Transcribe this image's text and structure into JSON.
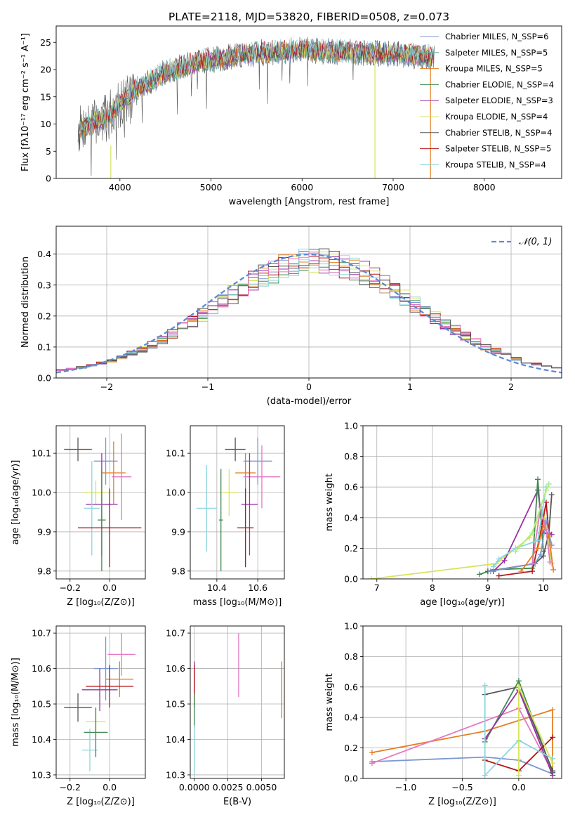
{
  "chart_data": [
    {
      "id": "spectrum",
      "type": "line",
      "title": "PLATE=2118, MJD=53820, FIBERID=0508, z=0.073",
      "xlabel": "wavelength [Angstrom, rest frame]",
      "ylabel": "Flux [fλ10⁻¹⁷ erg cm⁻² s⁻¹ A⁻¹]",
      "xlim": [
        3300,
        8850
      ],
      "ylim": [
        0,
        28
      ],
      "xticks": [
        "4000",
        "5000",
        "6000",
        "7000",
        "8000"
      ],
      "yticks": [
        "0",
        "5",
        "10",
        "15",
        "20",
        "25"
      ],
      "legend_position": "upper-right",
      "continuum": {
        "x": [
          3550,
          3650,
          3750,
          3850,
          3950,
          4050,
          4150,
          4300,
          4500,
          4700,
          4900,
          5100,
          5300,
          5500,
          5700,
          5900,
          6100,
          6300,
          6500,
          6700,
          6900,
          7100,
          7300,
          7500,
          7700,
          7900,
          8100,
          8300,
          8500,
          8700
        ],
        "y": [
          9.0,
          10.0,
          10.5,
          11.0,
          13.0,
          14.5,
          16.0,
          17.5,
          19.5,
          20.5,
          21.5,
          22.0,
          22.5,
          23.0,
          23.3,
          23.5,
          23.5,
          23.3,
          23.2,
          23.0,
          23.0,
          22.8,
          22.5,
          22.0,
          21.5,
          21.0,
          20.5,
          20.0,
          19.5,
          19.0
        ]
      },
      "series": [
        {
          "name": "Chabrier MILES, N_SSP=6",
          "color": "#7d97d2"
        },
        {
          "name": "Salpeter MILES, N_SSP=5",
          "color": "#5ab4a4"
        },
        {
          "name": "Kroupa MILES, N_SSP=5",
          "color": "#e67e22"
        },
        {
          "name": "Chabrier ELODIE, N_SSP=4",
          "color": "#3f8a4f"
        },
        {
          "name": "Salpeter ELODIE, N_SSP=3",
          "color": "#9a32a3"
        },
        {
          "name": "Kroupa ELODIE, N_SSP=4",
          "color": "#d7e35c"
        },
        {
          "name": "Chabrier STELIB, N_SSP=4",
          "color": "#555555"
        },
        {
          "name": "Salpeter STELIB, N_SSP=5",
          "color": "#b51717"
        },
        {
          "name": "Kroupa STELIB, N_SSP=4",
          "color": "#8ad6de"
        }
      ]
    },
    {
      "id": "residuals",
      "type": "line",
      "xlabel": "(data-model)/error",
      "ylabel": "Normed distribution",
      "xlim": [
        -2.5,
        2.5
      ],
      "ylim": [
        0,
        0.49
      ],
      "xticks": [
        "−2",
        "−1",
        "0",
        "1",
        "2"
      ],
      "yticks": [
        "0.0",
        "0.1",
        "0.2",
        "0.3",
        "0.4"
      ],
      "grid": true,
      "gaussian_label": "𝒩(0, 1)",
      "bin_width": 0.1,
      "colors": [
        "#7d97d2",
        "#e67e22",
        "#3f8a4f",
        "#9a32a3",
        "#d7e35c",
        "#b51717",
        "#8ad6de",
        "#e377c2",
        "#555555"
      ]
    },
    {
      "id": "age_vs_Z",
      "type": "scatter",
      "xlabel": "Z [log₁₀(Z/Z⊙)]",
      "ylabel": "age  [log₁₀(age/yr)]",
      "xlim": [
        -0.27,
        0.18
      ],
      "ylim": [
        9.78,
        10.17
      ],
      "xticks": [
        "−0.2",
        "0.0"
      ],
      "yticks": [
        "9.8",
        "9.9",
        "10.0",
        "10.1"
      ],
      "points": [
        {
          "x": -0.16,
          "y": 10.11,
          "xerr": 0.07,
          "yerr": 0.03,
          "color": "#555555"
        },
        {
          "x": -0.02,
          "y": 10.08,
          "xerr": 0.06,
          "yerr": 0.06,
          "color": "#7d97d2"
        },
        {
          "x": 0.02,
          "y": 10.05,
          "xerr": 0.06,
          "yerr": 0.08,
          "color": "#e67e22"
        },
        {
          "x": 0.06,
          "y": 10.04,
          "xerr": 0.05,
          "yerr": 0.11,
          "color": "#e377c2"
        },
        {
          "x": -0.07,
          "y": 10.0,
          "xerr": 0.06,
          "yerr": 0.03,
          "color": "#d7e35c"
        },
        {
          "x": -0.04,
          "y": 9.97,
          "xerr": 0.08,
          "yerr": 0.13,
          "color": "#9a32a3"
        },
        {
          "x": -0.09,
          "y": 9.96,
          "xerr": 0.04,
          "yerr": 0.12,
          "color": "#8ad6de"
        },
        {
          "x": -0.04,
          "y": 9.93,
          "xerr": 0.02,
          "yerr": 0.13,
          "color": "#3f8a4f"
        },
        {
          "x": 0.0,
          "y": 9.91,
          "xerr": 0.16,
          "yerr": 0.1,
          "color": "#b51717"
        }
      ]
    },
    {
      "id": "age_vs_mass",
      "type": "scatter",
      "xlabel": "mass [log₁₀(M/M⊙)]",
      "xlim": [
        10.27,
        10.73
      ],
      "ylim": [
        9.78,
        10.17
      ],
      "xticks": [
        "10.4",
        "10.6"
      ],
      "yticks": [
        "9.8",
        "9.9",
        "10.0",
        "10.1"
      ],
      "points": [
        {
          "x": 10.49,
          "y": 10.11,
          "xerr": 0.05,
          "yerr": 0.03,
          "color": "#555555"
        },
        {
          "x": 10.6,
          "y": 10.08,
          "xerr": 0.07,
          "yerr": 0.06,
          "color": "#7d97d2"
        },
        {
          "x": 10.54,
          "y": 10.05,
          "xerr": 0.05,
          "yerr": 0.05,
          "color": "#e67e22"
        },
        {
          "x": 10.62,
          "y": 10.04,
          "xerr": 0.09,
          "yerr": 0.08,
          "color": "#e377c2"
        },
        {
          "x": 10.46,
          "y": 10.0,
          "xerr": 0.04,
          "yerr": 0.06,
          "color": "#d7e35c"
        },
        {
          "x": 10.56,
          "y": 9.97,
          "xerr": 0.04,
          "yerr": 0.13,
          "color": "#9a32a3"
        },
        {
          "x": 10.35,
          "y": 9.96,
          "xerr": 0.05,
          "yerr": 0.11,
          "color": "#8ad6de"
        },
        {
          "x": 10.42,
          "y": 9.93,
          "xerr": 0.01,
          "yerr": 0.13,
          "color": "#3f8a4f"
        },
        {
          "x": 10.54,
          "y": 9.91,
          "xerr": 0.04,
          "yerr": 0.1,
          "color": "#b51717"
        }
      ]
    },
    {
      "id": "weight_vs_age",
      "type": "line",
      "xlabel": "age  [log₁₀(age/yr)]",
      "ylabel": "mass weight",
      "xlim": [
        6.75,
        10.33
      ],
      "ylim": [
        0,
        1
      ],
      "xticks": [
        "7",
        "8",
        "9",
        "10"
      ],
      "yticks": [
        "0.0",
        "0.2",
        "0.4",
        "0.6",
        "0.8",
        "1.0"
      ],
      "grid": true,
      "series": [
        {
          "color": "#d7e35c",
          "x": [
            6.9,
            9.15,
            9.75,
            10.0,
            10.15
          ],
          "y": [
            0.0,
            0.1,
            0.27,
            0.45,
            0.1
          ]
        },
        {
          "color": "#9a32a3",
          "x": [
            9.1,
            9.3,
            9.9,
            10.0,
            10.15
          ],
          "y": [
            0.05,
            0.12,
            0.58,
            0.3,
            0.29
          ]
        },
        {
          "color": "#3f8a4f",
          "x": [
            8.85,
            9.1,
            9.8,
            9.9,
            10.0
          ],
          "y": [
            0.03,
            0.06,
            0.07,
            0.65,
            0.18
          ]
        },
        {
          "color": "#555555",
          "x": [
            9.0,
            9.85,
            10.0,
            10.1,
            10.15
          ],
          "y": [
            0.05,
            0.1,
            0.15,
            0.3,
            0.55
          ]
        },
        {
          "color": "#b51717",
          "x": [
            9.2,
            9.8,
            9.95,
            10.05,
            10.1
          ],
          "y": [
            0.02,
            0.05,
            0.3,
            0.5,
            0.3
          ]
        },
        {
          "color": "#7d97d2",
          "x": [
            9.05,
            9.85,
            9.95,
            10.05,
            10.15
          ],
          "y": [
            0.05,
            0.1,
            0.16,
            0.38,
            0.22
          ]
        },
        {
          "color": "#e67e22",
          "x": [
            9.6,
            9.9,
            10.0,
            10.1,
            10.18
          ],
          "y": [
            0.05,
            0.2,
            0.35,
            0.28,
            0.06
          ]
        },
        {
          "color": "#e377c2",
          "x": [
            9.8,
            9.95,
            10.05,
            10.12
          ],
          "y": [
            0.1,
            0.47,
            0.32,
            0.11
          ]
        },
        {
          "color": "#8ad6de",
          "x": [
            9.1,
            9.2,
            9.5,
            9.9,
            10.05
          ],
          "y": [
            0.08,
            0.13,
            0.2,
            0.25,
            0.6
          ]
        },
        {
          "color": "#aaee77",
          "x": [
            9.5,
            9.8,
            10.05,
            10.1
          ],
          "y": [
            0.18,
            0.3,
            0.58,
            0.62
          ]
        }
      ]
    },
    {
      "id": "mass_vs_Z",
      "type": "scatter",
      "xlabel": "Z [log₁₀(Z/Z⊙)]",
      "ylabel": "mass [log₁₀(M/M⊙)]",
      "xlim": [
        -0.27,
        0.18
      ],
      "ylim": [
        10.29,
        10.72
      ],
      "xticks": [
        "−0.2",
        "0.0"
      ],
      "yticks": [
        "10.3",
        "10.4",
        "10.5",
        "10.6",
        "10.7"
      ],
      "points": [
        {
          "x": -0.16,
          "y": 10.49,
          "xerr": 0.07,
          "yerr": 0.04,
          "color": "#555555"
        },
        {
          "x": -0.02,
          "y": 10.6,
          "xerr": 0.06,
          "yerr": 0.09,
          "color": "#7d97d2"
        },
        {
          "x": 0.05,
          "y": 10.57,
          "xerr": 0.07,
          "yerr": 0.05,
          "color": "#e67e22"
        },
        {
          "x": 0.06,
          "y": 10.64,
          "xerr": 0.07,
          "yerr": 0.06,
          "color": "#e377c2"
        },
        {
          "x": -0.07,
          "y": 10.45,
          "xerr": 0.05,
          "yerr": 0.04,
          "color": "#d7e35c"
        },
        {
          "x": -0.05,
          "y": 10.54,
          "xerr": 0.09,
          "yerr": 0.06,
          "color": "#9a32a3"
        },
        {
          "x": -0.1,
          "y": 10.37,
          "xerr": 0.04,
          "yerr": 0.06,
          "color": "#8ad6de"
        },
        {
          "x": -0.07,
          "y": 10.42,
          "xerr": 0.06,
          "yerr": 0.07,
          "color": "#3f8a4f"
        },
        {
          "x": 0.0,
          "y": 10.55,
          "xerr": 0.12,
          "yerr": 0.06,
          "color": "#b51717"
        }
      ]
    },
    {
      "id": "mass_vs_ebv",
      "type": "scatter",
      "xlabel": "E(B-V)",
      "xlim": [
        -0.0003,
        0.0067
      ],
      "ylim": [
        10.29,
        10.72
      ],
      "xticks": [
        "0.0000",
        "0.0025",
        "0.0050"
      ],
      "yticks": [
        "10.3",
        "10.4",
        "10.5",
        "10.6",
        "10.7"
      ],
      "points": [
        {
          "x": 0.0,
          "y": 10.57,
          "yerr": 0.05,
          "color": "#9a32a3"
        },
        {
          "x": 0.0,
          "y": 10.55,
          "yerr": 0.06,
          "color": "#b51717"
        },
        {
          "x": 0.0,
          "y": 10.48,
          "yerr": 0.05,
          "color": "#3f8a4f"
        },
        {
          "x": 0.0,
          "y": 10.37,
          "yerr": 0.07,
          "color": "#8ad6de"
        },
        {
          "x": 0.0033,
          "y": 10.61,
          "yerr": 0.09,
          "color": "#e377c2"
        },
        {
          "x": 0.0065,
          "y": 10.54,
          "yerr": 0.08,
          "color": "#e67e22"
        }
      ]
    },
    {
      "id": "weight_vs_Z",
      "type": "line",
      "xlabel": "Z [log₁₀(Z/Z⊙)]",
      "ylabel": "mass weight",
      "xlim": [
        -1.38,
        0.38
      ],
      "ylim": [
        0,
        1
      ],
      "xticks": [
        "−1.0",
        "−0.5",
        "0.0"
      ],
      "yticks": [
        "0.0",
        "0.2",
        "0.4",
        "0.6",
        "0.8",
        "1.0"
      ],
      "grid": true,
      "series": [
        {
          "color": "#7d97d2",
          "x": [
            -1.3,
            -0.3,
            0.0,
            0.3
          ],
          "y": [
            0.11,
            0.14,
            0.12,
            0.03
          ]
        },
        {
          "color": "#e67e22",
          "x": [
            -1.3,
            -0.3,
            0.3,
            0.3
          ],
          "y": [
            0.17,
            0.31,
            0.45,
            0.02
          ]
        },
        {
          "color": "#e377c2",
          "x": [
            -1.3,
            0.0,
            0.3
          ],
          "y": [
            0.1,
            0.46,
            0.04
          ]
        },
        {
          "color": "#3f8a4f",
          "x": [
            -0.3,
            0.0,
            0.3
          ],
          "y": [
            0.24,
            0.64,
            0.04
          ]
        },
        {
          "color": "#555555",
          "x": [
            -0.3,
            0.0,
            0.3
          ],
          "y": [
            0.55,
            0.6,
            0.05
          ]
        },
        {
          "color": "#9a32a3",
          "x": [
            -0.3,
            0.0,
            0.3
          ],
          "y": [
            0.26,
            0.58,
            0.02
          ]
        },
        {
          "color": "#b51717",
          "x": [
            -0.3,
            0.0,
            0.3
          ],
          "y": [
            0.12,
            0.05,
            0.27
          ]
        },
        {
          "color": "#8ad6de",
          "x": [
            -0.3,
            -0.3,
            0.0,
            0.3
          ],
          "y": [
            0.61,
            0.02,
            0.25,
            0.13
          ]
        },
        {
          "color": "#d7e35c",
          "x": [
            0.0,
            0.0,
            0.3
          ],
          "y": [
            0.02,
            0.6,
            0.1
          ]
        }
      ]
    }
  ]
}
